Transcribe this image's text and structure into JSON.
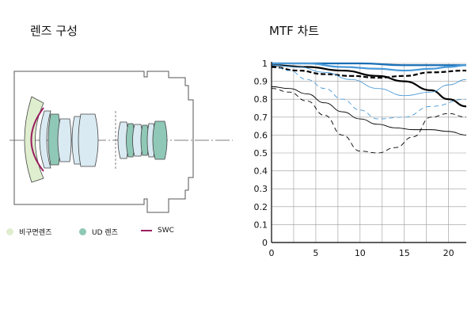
{
  "lens_section": {
    "title": "렌즈 구성",
    "legend": [
      {
        "label": "비구면렌즈",
        "color": "#dfeecf",
        "kind": "dot"
      },
      {
        "label": "UD 렌즈",
        "color": "#8fc8b6",
        "kind": "dot"
      },
      {
        "label": "SWC",
        "color": "#9a1f5f",
        "kind": "line"
      }
    ]
  },
  "mtf_section": {
    "title": "MTF 차트"
  },
  "chart_data": {
    "type": "line",
    "title": "MTF 차트",
    "xlabel": "",
    "ylabel": "",
    "xlim": [
      0,
      22
    ],
    "ylim": [
      0,
      1
    ],
    "x_ticks": [
      0,
      5,
      10,
      15,
      20
    ],
    "y_ticks": [
      0,
      0.1,
      0.2,
      0.3,
      0.4,
      0.5,
      0.6,
      0.7,
      0.8,
      0.9,
      1
    ],
    "grid": true,
    "series": [
      {
        "color": "#000000",
        "style": "solid",
        "weight": "thick",
        "x": [
          0,
          4,
          8,
          12,
          15,
          18,
          20,
          22
        ],
        "y": [
          0.99,
          0.98,
          0.96,
          0.93,
          0.9,
          0.85,
          0.8,
          0.76
        ]
      },
      {
        "color": "#000000",
        "style": "dashed",
        "weight": "thick",
        "x": [
          0,
          3,
          6,
          9,
          12,
          15,
          18,
          22
        ],
        "y": [
          0.98,
          0.96,
          0.94,
          0.93,
          0.92,
          0.93,
          0.95,
          0.96
        ]
      },
      {
        "color": "#000000",
        "style": "solid",
        "weight": "thin",
        "x": [
          0,
          2,
          4,
          6,
          8,
          10,
          12,
          14,
          16,
          18,
          20,
          22
        ],
        "y": [
          0.87,
          0.86,
          0.83,
          0.78,
          0.73,
          0.69,
          0.66,
          0.64,
          0.63,
          0.63,
          0.62,
          0.6
        ]
      },
      {
        "color": "#000000",
        "style": "dashed",
        "weight": "thin",
        "x": [
          0,
          2,
          4,
          6,
          8,
          10,
          12,
          14,
          16,
          18,
          20,
          22
        ],
        "y": [
          0.86,
          0.84,
          0.79,
          0.71,
          0.6,
          0.51,
          0.5,
          0.53,
          0.59,
          0.7,
          0.72,
          0.7
        ]
      },
      {
        "color": "#1a6fb5",
        "style": "solid",
        "weight": "thick",
        "x": [
          0,
          5,
          10,
          15,
          20,
          22
        ],
        "y": [
          1.0,
          1.0,
          1.0,
          0.99,
          0.99,
          0.99
        ]
      },
      {
        "color": "#4a9ad8",
        "style": "solid",
        "weight": "thick",
        "x": [
          0,
          4,
          8,
          12,
          15,
          18,
          20,
          22
        ],
        "y": [
          1.0,
          1.0,
          0.98,
          0.97,
          0.96,
          0.97,
          0.98,
          0.99
        ]
      },
      {
        "color": "#4a9ad8",
        "style": "solid",
        "weight": "thin",
        "x": [
          0,
          3,
          6,
          9,
          12,
          15,
          18,
          20,
          22
        ],
        "y": [
          0.99,
          0.98,
          0.95,
          0.91,
          0.86,
          0.82,
          0.84,
          0.88,
          0.91
        ]
      },
      {
        "color": "#4a9ad8",
        "style": "dashed",
        "weight": "thin",
        "x": [
          0,
          2,
          4,
          6,
          8,
          10,
          12,
          15,
          18,
          22
        ],
        "y": [
          0.99,
          0.96,
          0.91,
          0.86,
          0.8,
          0.74,
          0.69,
          0.7,
          0.76,
          0.8
        ]
      }
    ]
  }
}
